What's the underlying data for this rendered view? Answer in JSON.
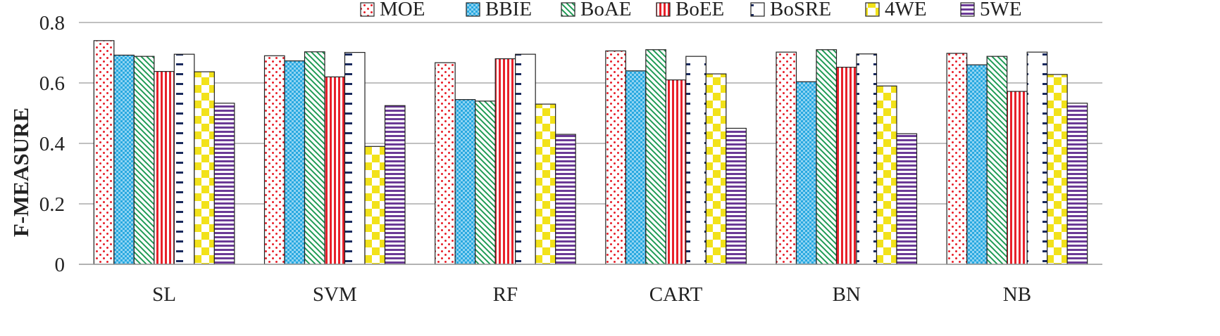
{
  "chart_data": {
    "type": "bar",
    "ylabel": "F-MEASURE",
    "xlabel": "",
    "title": "",
    "ylim": [
      0,
      0.8
    ],
    "yticks": [
      0,
      0.2,
      0.4,
      0.6,
      0.8
    ],
    "ytick_labels": [
      "0",
      "0.2",
      "0.4",
      "0.6",
      "0.8"
    ],
    "grid": "horizontal",
    "legend_position": "top",
    "categories": [
      "SL",
      "SVM",
      "RF",
      "CART",
      "BN",
      "NB"
    ],
    "series": [
      {
        "name": "MOE",
        "values": [
          0.74,
          0.69,
          0.667,
          0.706,
          0.702,
          0.698
        ],
        "color": "#e8202a",
        "pattern": "dots"
      },
      {
        "name": "BBIE",
        "values": [
          0.692,
          0.673,
          0.545,
          0.64,
          0.604,
          0.66
        ],
        "color": "#29a9e0",
        "pattern": "checker-fine"
      },
      {
        "name": "BoAE",
        "values": [
          0.688,
          0.703,
          0.54,
          0.71,
          0.71,
          0.688
        ],
        "color": "#1f9b55",
        "pattern": "diagonal"
      },
      {
        "name": "BoEE",
        "values": [
          0.638,
          0.62,
          0.68,
          0.61,
          0.652,
          0.572
        ],
        "color": "#e8202a",
        "pattern": "vertical-stripes"
      },
      {
        "name": "BoSRE",
        "values": [
          0.695,
          0.701,
          0.695,
          0.688,
          0.696,
          0.702
        ],
        "color": "#1a2a5e",
        "pattern": "dashes"
      },
      {
        "name": "4WE",
        "values": [
          0.637,
          0.39,
          0.53,
          0.63,
          0.59,
          0.628
        ],
        "color": "#f2e21a",
        "pattern": "checker-large"
      },
      {
        "name": "5WE",
        "values": [
          0.533,
          0.525,
          0.43,
          0.45,
          0.432,
          0.533
        ],
        "color": "#6b3a96",
        "pattern": "horizontal-stripes"
      }
    ]
  }
}
